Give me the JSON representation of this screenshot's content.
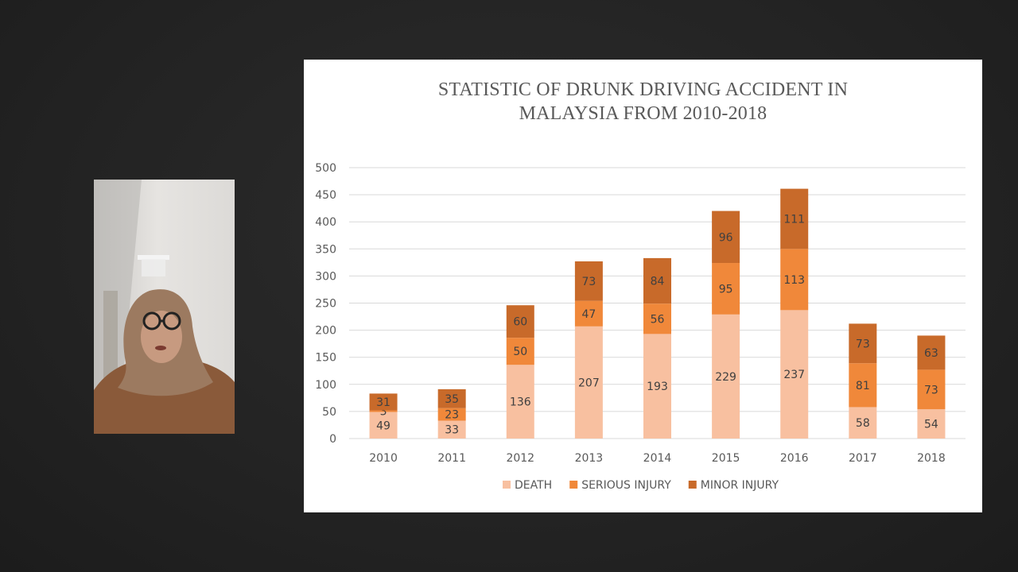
{
  "chart_data": {
    "type": "bar",
    "stacked": true,
    "title_lines": [
      "STATISTIC OF DRUNK DRIVING ACCIDENT IN",
      "MALAYSIA FROM 2010-2018"
    ],
    "categories": [
      "2010",
      "2011",
      "2012",
      "2013",
      "2014",
      "2015",
      "2016",
      "2017",
      "2018"
    ],
    "series": [
      {
        "name": "DEATH",
        "color": "#F8C0A0",
        "values": [
          49,
          33,
          136,
          207,
          193,
          229,
          237,
          58,
          54
        ]
      },
      {
        "name": "SERIOUS INJURY",
        "color": "#F0883A",
        "values": [
          3,
          23,
          50,
          47,
          56,
          95,
          113,
          81,
          73
        ]
      },
      {
        "name": "MINOR INJURY",
        "color": "#C86A2A",
        "values": [
          31,
          35,
          60,
          73,
          84,
          96,
          111,
          73,
          63
        ]
      }
    ],
    "ylim": [
      0,
      500
    ],
    "yticks": [
      0,
      50,
      100,
      150,
      200,
      250,
      300,
      350,
      400,
      450,
      500
    ],
    "grid": true,
    "legend_position": "bottom"
  }
}
